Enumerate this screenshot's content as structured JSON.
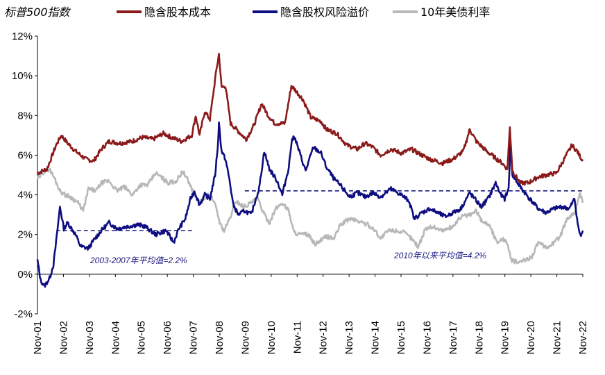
{
  "chart_data": {
    "type": "line",
    "title": "标普500指数",
    "ylabel": "",
    "xlabel": "",
    "ylim": [
      -2,
      12
    ],
    "yticks": [
      -2,
      0,
      2,
      4,
      6,
      8,
      10,
      12
    ],
    "ytick_labels": [
      "-2%",
      "0%",
      "2%",
      "4%",
      "6%",
      "8%",
      "10%",
      "12%"
    ],
    "xlim": [
      2001.83,
      2022.92
    ],
    "xtick_labels": [
      "Nov-01",
      "Nov-02",
      "Nov-03",
      "Nov-04",
      "Nov-05",
      "Nov-06",
      "Nov-07",
      "Nov-08",
      "Nov-09",
      "Nov-10",
      "Nov-11",
      "Nov-12",
      "Nov-13",
      "Nov-14",
      "Nov-15",
      "Nov-16",
      "Nov-17",
      "Nov-18",
      "Nov-19",
      "Nov-20",
      "Nov-21",
      "Nov-22"
    ],
    "legend_position": "top",
    "series": [
      {
        "name": "隐含股本成本",
        "color": "#8b1a1a",
        "points": [
          [
            2001.83,
            5.1
          ],
          [
            2002.2,
            5.3
          ],
          [
            2002.55,
            6.5
          ],
          [
            2002.75,
            7.0
          ],
          [
            2003.0,
            6.6
          ],
          [
            2003.3,
            6.2
          ],
          [
            2003.7,
            5.8
          ],
          [
            2004.0,
            5.7
          ],
          [
            2004.3,
            6.3
          ],
          [
            2004.6,
            6.7
          ],
          [
            2005.0,
            6.6
          ],
          [
            2005.5,
            6.7
          ],
          [
            2005.9,
            6.9
          ],
          [
            2006.3,
            6.8
          ],
          [
            2006.7,
            7.1
          ],
          [
            2007.0,
            6.9
          ],
          [
            2007.4,
            6.7
          ],
          [
            2007.8,
            7.0
          ],
          [
            2007.95,
            8.0
          ],
          [
            2008.1,
            7.0
          ],
          [
            2008.3,
            8.2
          ],
          [
            2008.5,
            7.8
          ],
          [
            2008.75,
            10.3
          ],
          [
            2008.85,
            11.1
          ],
          [
            2008.95,
            9.4
          ],
          [
            2009.1,
            9.5
          ],
          [
            2009.3,
            7.6
          ],
          [
            2009.6,
            7.2
          ],
          [
            2009.9,
            6.8
          ],
          [
            2010.2,
            7.5
          ],
          [
            2010.5,
            8.6
          ],
          [
            2010.75,
            8.0
          ],
          [
            2011.0,
            7.6
          ],
          [
            2011.4,
            7.6
          ],
          [
            2011.65,
            9.5
          ],
          [
            2011.85,
            9.2
          ],
          [
            2012.1,
            8.8
          ],
          [
            2012.4,
            7.9
          ],
          [
            2012.8,
            7.7
          ],
          [
            2013.0,
            7.3
          ],
          [
            2013.4,
            7.1
          ],
          [
            2013.8,
            6.5
          ],
          [
            2014.2,
            6.3
          ],
          [
            2014.5,
            6.6
          ],
          [
            2014.8,
            6.4
          ],
          [
            2015.1,
            6.0
          ],
          [
            2015.5,
            6.3
          ],
          [
            2015.9,
            6.1
          ],
          [
            2016.3,
            6.3
          ],
          [
            2016.7,
            6.0
          ],
          [
            2017.0,
            5.8
          ],
          [
            2017.5,
            5.6
          ],
          [
            2017.9,
            5.8
          ],
          [
            2018.3,
            6.2
          ],
          [
            2018.55,
            7.3
          ],
          [
            2018.8,
            6.7
          ],
          [
            2019.2,
            6.2
          ],
          [
            2019.4,
            6.0
          ],
          [
            2019.8,
            5.6
          ],
          [
            2020.0,
            5.3
          ],
          [
            2020.1,
            7.4
          ],
          [
            2020.2,
            5.2
          ],
          [
            2020.5,
            4.6
          ],
          [
            2020.8,
            4.6
          ],
          [
            2021.2,
            4.9
          ],
          [
            2021.5,
            5.0
          ],
          [
            2021.9,
            5.1
          ],
          [
            2022.2,
            5.8
          ],
          [
            2022.5,
            6.5
          ],
          [
            2022.7,
            6.2
          ],
          [
            2022.92,
            5.7
          ]
        ]
      },
      {
        "name": "隐含股权风险溢价",
        "color": "#0d0d80",
        "points": [
          [
            2001.83,
            0.7
          ],
          [
            2001.95,
            -0.3
          ],
          [
            2002.1,
            -0.6
          ],
          [
            2002.3,
            -0.2
          ],
          [
            2002.45,
            0.5
          ],
          [
            2002.55,
            1.6
          ],
          [
            2002.7,
            3.4
          ],
          [
            2002.85,
            2.3
          ],
          [
            2003.0,
            2.6
          ],
          [
            2003.3,
            2.0
          ],
          [
            2003.5,
            1.4
          ],
          [
            2003.8,
            1.3
          ],
          [
            2004.0,
            1.7
          ],
          [
            2004.3,
            2.2
          ],
          [
            2004.6,
            2.6
          ],
          [
            2004.9,
            2.3
          ],
          [
            2005.3,
            2.4
          ],
          [
            2005.7,
            2.5
          ],
          [
            2006.0,
            2.4
          ],
          [
            2006.4,
            2.0
          ],
          [
            2006.8,
            2.2
          ],
          [
            2007.1,
            1.6
          ],
          [
            2007.3,
            2.3
          ],
          [
            2007.55,
            2.8
          ],
          [
            2007.75,
            3.8
          ],
          [
            2007.9,
            4.2
          ],
          [
            2008.1,
            3.5
          ],
          [
            2008.3,
            4.0
          ],
          [
            2008.5,
            3.8
          ],
          [
            2008.7,
            5.0
          ],
          [
            2008.8,
            6.4
          ],
          [
            2008.85,
            7.6
          ],
          [
            2008.95,
            6.2
          ],
          [
            2009.1,
            5.8
          ],
          [
            2009.25,
            4.8
          ],
          [
            2009.4,
            3.5
          ],
          [
            2009.6,
            3.0
          ],
          [
            2009.85,
            3.2
          ],
          [
            2010.1,
            3.0
          ],
          [
            2010.25,
            3.7
          ],
          [
            2010.4,
            4.3
          ],
          [
            2010.6,
            6.2
          ],
          [
            2010.8,
            5.3
          ],
          [
            2011.1,
            4.7
          ],
          [
            2011.3,
            4.0
          ],
          [
            2011.55,
            5.4
          ],
          [
            2011.65,
            6.6
          ],
          [
            2011.75,
            7.0
          ],
          [
            2011.95,
            6.2
          ],
          [
            2012.2,
            5.2
          ],
          [
            2012.5,
            6.4
          ],
          [
            2012.8,
            6.1
          ],
          [
            2013.0,
            5.4
          ],
          [
            2013.3,
            4.8
          ],
          [
            2013.6,
            4.4
          ],
          [
            2013.9,
            3.9
          ],
          [
            2014.2,
            4.1
          ],
          [
            2014.5,
            3.9
          ],
          [
            2014.8,
            4.1
          ],
          [
            2015.1,
            3.9
          ],
          [
            2015.5,
            4.3
          ],
          [
            2015.9,
            4.0
          ],
          [
            2016.2,
            3.7
          ],
          [
            2016.4,
            2.8
          ],
          [
            2016.7,
            3.1
          ],
          [
            2017.0,
            3.3
          ],
          [
            2017.3,
            3.1
          ],
          [
            2017.6,
            2.9
          ],
          [
            2017.9,
            3.1
          ],
          [
            2018.2,
            3.3
          ],
          [
            2018.55,
            4.1
          ],
          [
            2018.8,
            3.7
          ],
          [
            2019.0,
            3.4
          ],
          [
            2019.3,
            3.9
          ],
          [
            2019.55,
            4.6
          ],
          [
            2019.75,
            4.0
          ],
          [
            2019.9,
            3.8
          ],
          [
            2020.05,
            4.3
          ],
          [
            2020.12,
            6.6
          ],
          [
            2020.2,
            5.0
          ],
          [
            2020.5,
            4.4
          ],
          [
            2020.8,
            3.9
          ],
          [
            2021.2,
            3.3
          ],
          [
            2021.5,
            3.1
          ],
          [
            2021.8,
            3.3
          ],
          [
            2022.1,
            3.4
          ],
          [
            2022.4,
            3.3
          ],
          [
            2022.6,
            3.8
          ],
          [
            2022.75,
            2.3
          ],
          [
            2022.85,
            1.9
          ],
          [
            2022.92,
            2.2
          ]
        ]
      },
      {
        "name": "10年美债利率",
        "color": "#b8b8b8",
        "points": [
          [
            2001.83,
            4.8
          ],
          [
            2002.1,
            5.2
          ],
          [
            2002.3,
            5.3
          ],
          [
            2002.5,
            4.8
          ],
          [
            2002.7,
            4.2
          ],
          [
            2002.9,
            4.0
          ],
          [
            2003.1,
            3.9
          ],
          [
            2003.4,
            3.6
          ],
          [
            2003.6,
            3.2
          ],
          [
            2003.8,
            4.3
          ],
          [
            2004.1,
            4.2
          ],
          [
            2004.3,
            4.6
          ],
          [
            2004.6,
            4.7
          ],
          [
            2004.9,
            4.2
          ],
          [
            2005.2,
            4.4
          ],
          [
            2005.5,
            4.0
          ],
          [
            2005.8,
            4.5
          ],
          [
            2006.1,
            4.5
          ],
          [
            2006.4,
            5.1
          ],
          [
            2006.7,
            4.8
          ],
          [
            2006.9,
            4.6
          ],
          [
            2007.2,
            4.7
          ],
          [
            2007.45,
            5.2
          ],
          [
            2007.7,
            4.6
          ],
          [
            2007.9,
            4.0
          ],
          [
            2008.1,
            3.6
          ],
          [
            2008.4,
            4.0
          ],
          [
            2008.6,
            3.8
          ],
          [
            2008.75,
            3.3
          ],
          [
            2008.9,
            2.5
          ],
          [
            2009.05,
            2.2
          ],
          [
            2009.3,
            2.9
          ],
          [
            2009.5,
            3.7
          ],
          [
            2009.8,
            3.4
          ],
          [
            2010.1,
            3.6
          ],
          [
            2010.35,
            3.8
          ],
          [
            2010.6,
            3.0
          ],
          [
            2010.8,
            2.6
          ],
          [
            2011.05,
            3.3
          ],
          [
            2011.3,
            3.6
          ],
          [
            2011.55,
            3.2
          ],
          [
            2011.75,
            2.1
          ],
          [
            2012.0,
            2.0
          ],
          [
            2012.3,
            2.0
          ],
          [
            2012.55,
            1.5
          ],
          [
            2012.8,
            1.7
          ],
          [
            2013.0,
            1.9
          ],
          [
            2013.3,
            1.8
          ],
          [
            2013.55,
            2.5
          ],
          [
            2013.9,
            2.8
          ],
          [
            2014.2,
            2.7
          ],
          [
            2014.6,
            2.5
          ],
          [
            2014.9,
            2.2
          ],
          [
            2015.1,
            1.8
          ],
          [
            2015.4,
            2.2
          ],
          [
            2015.7,
            2.2
          ],
          [
            2016.0,
            2.1
          ],
          [
            2016.3,
            1.8
          ],
          [
            2016.55,
            1.4
          ],
          [
            2016.85,
            2.3
          ],
          [
            2017.1,
            2.4
          ],
          [
            2017.5,
            2.2
          ],
          [
            2017.9,
            2.4
          ],
          [
            2018.2,
            2.9
          ],
          [
            2018.6,
            3.0
          ],
          [
            2018.8,
            3.2
          ],
          [
            2019.0,
            2.7
          ],
          [
            2019.3,
            2.5
          ],
          [
            2019.6,
            1.6
          ],
          [
            2019.8,
            1.8
          ],
          [
            2020.0,
            1.6
          ],
          [
            2020.15,
            0.7
          ],
          [
            2020.4,
            0.6
          ],
          [
            2020.7,
            0.7
          ],
          [
            2020.95,
            0.9
          ],
          [
            2021.2,
            1.6
          ],
          [
            2021.5,
            1.3
          ],
          [
            2021.8,
            1.6
          ],
          [
            2022.05,
            1.9
          ],
          [
            2022.3,
            2.8
          ],
          [
            2022.5,
            3.0
          ],
          [
            2022.65,
            3.2
          ],
          [
            2022.8,
            4.1
          ],
          [
            2022.92,
            3.6
          ]
        ]
      }
    ],
    "averages": [
      {
        "label": "2003-2007年平均值=2.2%",
        "value": 2.2,
        "x_start": 2002.55,
        "x_end": 2007.9
      },
      {
        "label": "2010年以来平均值=4.2%",
        "value": 4.2,
        "x_start": 2009.85,
        "x_end": 2022.92
      }
    ]
  }
}
